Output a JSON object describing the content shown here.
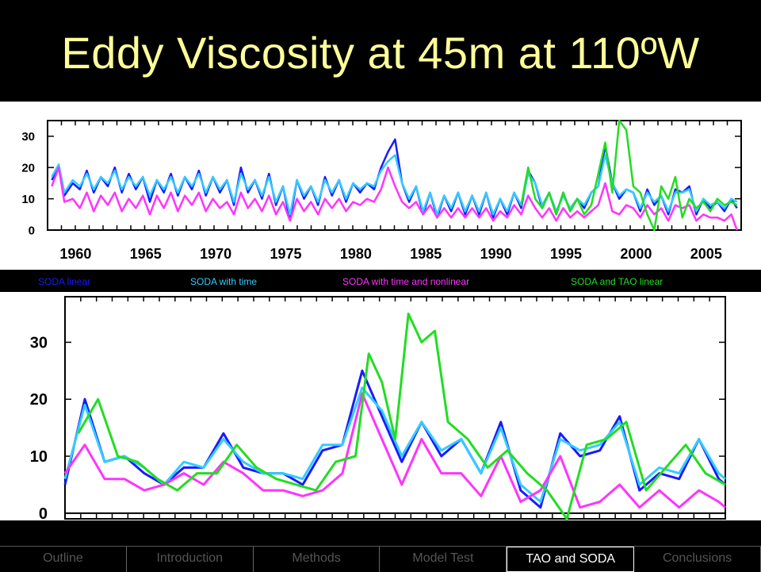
{
  "slide": {
    "title": "Eddy Viscosity at 45m at 110ºW"
  },
  "legend": [
    {
      "label": "SODA linear",
      "color": "#1a1aff"
    },
    {
      "label": "SODA with time",
      "color": "#33ccff"
    },
    {
      "label": "SODA with time and nonlinear",
      "color": "#ff33ff"
    },
    {
      "label": "SODA and TAO linear",
      "color": "#22dd22"
    }
  ],
  "nav": {
    "tabs": [
      "Outline",
      "Introduction",
      "Methods",
      "Model Test",
      "TAO and SODA",
      "Conclusions"
    ],
    "active_index": 4
  },
  "chart_data": [
    {
      "type": "line",
      "title": "",
      "xlabel": "",
      "ylabel": "",
      "x_ticks": [
        "1960",
        "1965",
        "1970",
        "1975",
        "1980",
        "1985",
        "1990",
        "1995",
        "2000",
        "2005"
      ],
      "y_ticks": [
        "0",
        "10",
        "20",
        "30"
      ],
      "xlim": [
        1958,
        2007.5
      ],
      "ylim": [
        0,
        35
      ],
      "series": [
        {
          "name": "SODA linear",
          "color": "#1a1aff",
          "x": [
            1958.3,
            1958.8,
            1959.2,
            1959.8,
            1960.3,
            1960.8,
            1961.3,
            1961.8,
            1962.3,
            1962.8,
            1963.3,
            1963.8,
            1964.3,
            1964.8,
            1965.3,
            1965.8,
            1966.3,
            1966.8,
            1967.3,
            1967.8,
            1968.3,
            1968.8,
            1969.3,
            1969.8,
            1970.3,
            1970.8,
            1971.3,
            1971.8,
            1972.3,
            1972.8,
            1973.3,
            1973.8,
            1974.3,
            1974.8,
            1975.3,
            1975.8,
            1976.3,
            1976.8,
            1977.3,
            1977.8,
            1978.3,
            1978.8,
            1979.3,
            1979.8,
            1980.3,
            1980.8,
            1981.3,
            1981.8,
            1982.3,
            1982.8,
            1983.3,
            1983.8,
            1984.3,
            1984.8,
            1985.3,
            1985.8,
            1986.3,
            1986.8,
            1987.3,
            1987.8,
            1988.3,
            1988.8,
            1989.3,
            1989.8,
            1990.3,
            1990.8,
            1991.3,
            1991.8,
            1992.3,
            1992.8,
            1993.3,
            1993.8,
            1994.3,
            1994.8,
            1995.3,
            1995.8,
            1996.3,
            1996.8,
            1997.3,
            1997.8,
            1998.3,
            1998.8,
            1999.3,
            1999.8,
            2000.3,
            2000.8,
            2001.3,
            2001.8,
            2002.3,
            2002.8,
            2003.3,
            2003.8,
            2004.3,
            2004.8,
            2005.3,
            2005.8,
            2006.3,
            2006.8,
            2007.2
          ],
          "y": [
            16,
            20,
            11,
            15,
            13,
            19,
            12,
            17,
            14,
            20,
            12,
            18,
            13,
            17,
            9,
            16,
            12,
            18,
            11,
            17,
            13,
            19,
            11,
            17,
            12,
            16,
            8,
            20,
            12,
            16,
            10,
            18,
            8,
            14,
            3,
            16,
            10,
            14,
            8,
            17,
            11,
            16,
            9,
            15,
            12,
            15,
            13,
            20,
            25,
            29,
            15,
            9,
            14,
            5,
            12,
            4,
            11,
            6,
            12,
            5,
            11,
            5,
            12,
            4,
            10,
            5,
            12,
            7,
            19,
            15,
            7,
            12,
            5,
            12,
            6,
            10,
            7,
            12,
            14,
            27,
            15,
            10,
            13,
            12,
            6,
            13,
            8,
            11,
            5,
            13,
            12,
            14,
            5,
            10,
            7,
            9,
            6,
            10,
            7
          ]
        },
        {
          "name": "SODA with time",
          "color": "#33ccff",
          "x": [
            1958.3,
            1958.8,
            1959.2,
            1959.8,
            1960.3,
            1960.8,
            1961.3,
            1961.8,
            1962.3,
            1962.8,
            1963.3,
            1963.8,
            1964.3,
            1964.8,
            1965.3,
            1965.8,
            1966.3,
            1966.8,
            1967.3,
            1967.8,
            1968.3,
            1968.8,
            1969.3,
            1969.8,
            1970.3,
            1970.8,
            1971.3,
            1971.8,
            1972.3,
            1972.8,
            1973.3,
            1973.8,
            1974.3,
            1974.8,
            1975.3,
            1975.8,
            1976.3,
            1976.8,
            1977.3,
            1977.8,
            1978.3,
            1978.8,
            1979.3,
            1979.8,
            1980.3,
            1980.8,
            1981.3,
            1981.8,
            1982.3,
            1982.8,
            1983.3,
            1983.8,
            1984.3,
            1984.8,
            1985.3,
            1985.8,
            1986.3,
            1986.8,
            1987.3,
            1987.8,
            1988.3,
            1988.8,
            1989.3,
            1989.8,
            1990.3,
            1990.8,
            1991.3,
            1991.8,
            1992.3,
            1992.8,
            1993.3,
            1993.8,
            1994.3,
            1994.8,
            1995.3,
            1995.8,
            1996.3,
            1996.8,
            1997.3,
            1997.8,
            1998.3,
            1998.8,
            1999.3,
            1999.8,
            2000.3,
            2000.8,
            2001.3,
            2001.8,
            2002.3,
            2002.8,
            2003.3,
            2003.8,
            2004.3,
            2004.8,
            2005.3,
            2005.8,
            2006.3,
            2006.8,
            2007.2
          ],
          "y": [
            17,
            21,
            12,
            16,
            14,
            18,
            13,
            17,
            15,
            19,
            13,
            17,
            14,
            17,
            11,
            16,
            13,
            17,
            12,
            17,
            14,
            18,
            12,
            17,
            13,
            16,
            9,
            18,
            13,
            16,
            11,
            17,
            9,
            14,
            5,
            16,
            11,
            14,
            9,
            16,
            12,
            16,
            10,
            15,
            13,
            15,
            14,
            19,
            22,
            24,
            15,
            10,
            14,
            6,
            12,
            5,
            11,
            7,
            12,
            6,
            11,
            6,
            12,
            5,
            10,
            6,
            12,
            8,
            18,
            15,
            8,
            12,
            6,
            11,
            7,
            10,
            8,
            12,
            14,
            24,
            15,
            11,
            13,
            12,
            7,
            12,
            9,
            11,
            6,
            12,
            12,
            13,
            6,
            10,
            8,
            9,
            7,
            10,
            9
          ]
        },
        {
          "name": "SODA with time and nonlinear",
          "color": "#ff33ff",
          "x": [
            1958.3,
            1958.8,
            1959.2,
            1959.8,
            1960.3,
            1960.8,
            1961.3,
            1961.8,
            1962.3,
            1962.8,
            1963.3,
            1963.8,
            1964.3,
            1964.8,
            1965.3,
            1965.8,
            1966.3,
            1966.8,
            1967.3,
            1967.8,
            1968.3,
            1968.8,
            1969.3,
            1969.8,
            1970.3,
            1970.8,
            1971.3,
            1971.8,
            1972.3,
            1972.8,
            1973.3,
            1973.8,
            1974.3,
            1974.8,
            1975.3,
            1975.8,
            1976.3,
            1976.8,
            1977.3,
            1977.8,
            1978.3,
            1978.8,
            1979.3,
            1979.8,
            1980.3,
            1980.8,
            1981.3,
            1981.8,
            1982.3,
            1982.8,
            1983.3,
            1983.8,
            1984.3,
            1984.8,
            1985.3,
            1985.8,
            1986.3,
            1986.8,
            1987.3,
            1987.8,
            1988.3,
            1988.8,
            1989.3,
            1989.8,
            1990.3,
            1990.8,
            1991.3,
            1991.8,
            1992.3,
            1992.8,
            1993.3,
            1993.8,
            1994.3,
            1994.8,
            1995.3,
            1995.8,
            1996.3,
            1996.8,
            1997.3,
            1997.8,
            1998.3,
            1998.8,
            1999.3,
            1999.8,
            2000.3,
            2000.8,
            2001.3,
            2001.8,
            2002.3,
            2002.8,
            2003.3,
            2003.8,
            2004.3,
            2004.8,
            2005.3,
            2005.8,
            2006.3,
            2006.8,
            2007.2
          ],
          "y": [
            14,
            20,
            9,
            10,
            7,
            12,
            6,
            11,
            8,
            12,
            6,
            10,
            7,
            11,
            5,
            11,
            7,
            12,
            6,
            11,
            8,
            12,
            6,
            10,
            7,
            9,
            5,
            12,
            7,
            10,
            6,
            11,
            5,
            9,
            3,
            10,
            6,
            9,
            5,
            10,
            7,
            10,
            6,
            9,
            8,
            10,
            9,
            13,
            20,
            14,
            9,
            7,
            9,
            5,
            8,
            4,
            7,
            4,
            7,
            4,
            7,
            4,
            7,
            3,
            6,
            4,
            8,
            5,
            11,
            7,
            4,
            7,
            3,
            7,
            4,
            6,
            4,
            6,
            8,
            15,
            6,
            5,
            8,
            7,
            4,
            8,
            5,
            7,
            3,
            8,
            7,
            8,
            3,
            5,
            4,
            4,
            3,
            5,
            0
          ]
        },
        {
          "name": "SODA and TAO linear",
          "color": "#22dd22",
          "x": [
            1991.8,
            1992.3,
            1992.8,
            1993.3,
            1993.8,
            1994.3,
            1994.8,
            1995.3,
            1995.8,
            1996.3,
            1996.8,
            1997.3,
            1997.8,
            1998.3,
            1998.8,
            1999.3,
            1999.8,
            2000.3,
            2000.8,
            2001.3,
            2001.8,
            2002.3,
            2002.8,
            2003.3,
            2003.8,
            2004.3,
            2004.8,
            2005.3,
            2005.8,
            2006.3,
            2006.8,
            2007.2
          ],
          "y": [
            8,
            20,
            10,
            7,
            12,
            5,
            12,
            6,
            10,
            5,
            8,
            18,
            28,
            12,
            35,
            32,
            14,
            12,
            5,
            0,
            14,
            10,
            17,
            4,
            10,
            7,
            9,
            6,
            10,
            8,
            9,
            8
          ]
        }
      ]
    },
    {
      "type": "line",
      "title": "",
      "xlabel": "",
      "ylabel": "",
      "x_ticks": [],
      "y_ticks": [
        "0",
        "10",
        "20",
        "30"
      ],
      "xlim": [
        0,
        100
      ],
      "ylim": [
        -1,
        38
      ],
      "series": [
        {
          "name": "SODA linear",
          "color": "#1a1aff",
          "x": [
            0,
            3,
            6,
            9,
            12,
            15,
            18,
            21,
            24,
            27,
            30,
            33,
            36,
            39,
            42,
            45,
            48,
            51,
            54,
            57,
            60,
            63,
            66,
            69,
            72,
            75,
            78,
            81,
            84,
            87,
            90,
            93,
            96,
            99,
            100
          ],
          "y": [
            5,
            20,
            9,
            10,
            7,
            5,
            8,
            8,
            14,
            8,
            7,
            7,
            5,
            11,
            12,
            25,
            17,
            9,
            16,
            10,
            13,
            7,
            16,
            4,
            1,
            14,
            10,
            11,
            17,
            4,
            7,
            6,
            13,
            6,
            5
          ]
        },
        {
          "name": "SODA with time",
          "color": "#33ccff",
          "x": [
            0,
            3,
            6,
            9,
            12,
            15,
            18,
            21,
            24,
            27,
            30,
            33,
            36,
            39,
            42,
            45,
            48,
            51,
            54,
            57,
            60,
            63,
            66,
            69,
            72,
            75,
            78,
            81,
            84,
            87,
            90,
            93,
            96,
            99,
            100
          ],
          "y": [
            6,
            19,
            9,
            10,
            8,
            5,
            9,
            8,
            13,
            9,
            7,
            7,
            6,
            12,
            12,
            22,
            18,
            10,
            16,
            11,
            13,
            7,
            15,
            5,
            2,
            13,
            11,
            12,
            16,
            5,
            8,
            7,
            13,
            7,
            6
          ]
        },
        {
          "name": "SODA with time and nonlinear",
          "color": "#ff33ff",
          "x": [
            0,
            3,
            6,
            9,
            12,
            15,
            18,
            21,
            24,
            27,
            30,
            33,
            36,
            39,
            42,
            45,
            48,
            51,
            54,
            57,
            60,
            63,
            66,
            69,
            72,
            75,
            78,
            81,
            84,
            87,
            90,
            93,
            96,
            99,
            100
          ],
          "y": [
            7,
            12,
            6,
            6,
            4,
            5,
            7,
            5,
            9,
            7,
            4,
            4,
            3,
            4,
            7,
            21,
            13,
            5,
            13,
            7,
            7,
            3,
            10,
            2,
            4,
            10,
            1,
            2,
            5,
            1,
            4,
            1,
            4,
            2,
            1
          ]
        },
        {
          "name": "SODA and TAO linear",
          "color": "#22dd22",
          "x": [
            2,
            5,
            8,
            11,
            14,
            17,
            20,
            23,
            26,
            29,
            32,
            35,
            38,
            41,
            44,
            46,
            48,
            50,
            52,
            54,
            56,
            58,
            61,
            64,
            67,
            70,
            73,
            76,
            79,
            82,
            85,
            88,
            91,
            94,
            97,
            100
          ],
          "y": [
            14,
            20,
            10,
            9,
            6,
            4,
            7,
            7,
            12,
            8,
            6,
            5,
            4,
            9,
            10,
            28,
            23,
            13,
            35,
            30,
            32,
            16,
            13,
            8,
            11,
            7,
            4,
            -1,
            12,
            13,
            16,
            4,
            8,
            12,
            7,
            5
          ]
        }
      ]
    }
  ]
}
